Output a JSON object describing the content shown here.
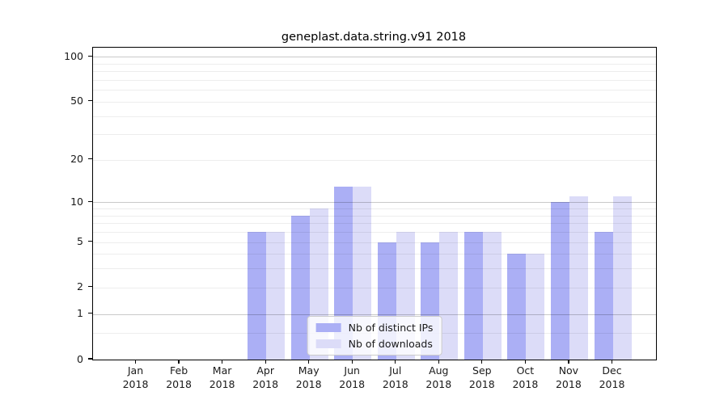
{
  "title": "geneplast.data.string.v91 2018",
  "colors": {
    "distinct_ips_bar": "#abaff5",
    "downloads_bar": "#dcdcf8",
    "axis": "#000000",
    "grid_major": "#c9c9c9",
    "grid_minor": "#ececec",
    "legend_border": "#cccccc"
  },
  "legend": {
    "items": [
      {
        "label": "Nb of distinct IPs"
      },
      {
        "label": "Nb of downloads"
      }
    ]
  },
  "chart_data": {
    "type": "bar",
    "title": "geneplast.data.string.v91 2018",
    "x_months": [
      "Jan",
      "Feb",
      "Mar",
      "Apr",
      "May",
      "Jun",
      "Jul",
      "Aug",
      "Sep",
      "Oct",
      "Nov",
      "Dec"
    ],
    "x_year": "2018",
    "categories": [
      "Jan 2018",
      "Feb 2018",
      "Mar 2018",
      "Apr 2018",
      "May 2018",
      "Jun 2018",
      "Jul 2018",
      "Aug 2018",
      "Sep 2018",
      "Oct 2018",
      "Nov 2018",
      "Dec 2018"
    ],
    "series": [
      {
        "name": "Nb of distinct IPs",
        "color": "#abaff5",
        "values": [
          0,
          0,
          0,
          6,
          8,
          13,
          5,
          5,
          6,
          4,
          10,
          6
        ]
      },
      {
        "name": "Nb of downloads",
        "color": "#dcdcf8",
        "values": [
          0,
          0,
          0,
          6,
          9,
          13,
          6,
          6,
          6,
          4,
          11,
          11
        ]
      }
    ],
    "yscale": "log1p",
    "ylim": [
      0,
      115
    ],
    "y_ticks": [
      0,
      1,
      2,
      5,
      10,
      20,
      50,
      100
    ],
    "y_major_gridlines": [
      1,
      10,
      100
    ],
    "y_minor_gridlines": [
      0.5,
      2,
      3,
      4,
      5,
      6,
      7,
      8,
      9,
      20,
      30,
      40,
      50,
      60,
      70,
      80,
      90
    ],
    "xlabel": "",
    "ylabel": "",
    "grid": true,
    "legend_position": "lower center"
  }
}
